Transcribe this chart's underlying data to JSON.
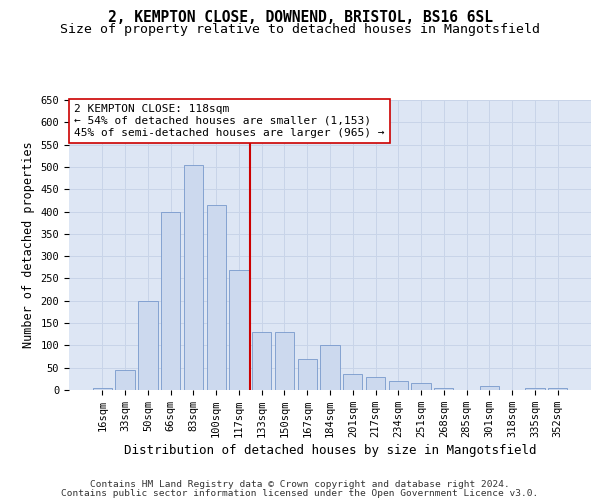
{
  "title_line1": "2, KEMPTON CLOSE, DOWNEND, BRISTOL, BS16 6SL",
  "title_line2": "Size of property relative to detached houses in Mangotsfield",
  "xlabel": "Distribution of detached houses by size in Mangotsfield",
  "ylabel": "Number of detached properties",
  "categories": [
    "16sqm",
    "33sqm",
    "50sqm",
    "66sqm",
    "83sqm",
    "100sqm",
    "117sqm",
    "133sqm",
    "150sqm",
    "167sqm",
    "184sqm",
    "201sqm",
    "217sqm",
    "234sqm",
    "251sqm",
    "268sqm",
    "285sqm",
    "301sqm",
    "318sqm",
    "335sqm",
    "352sqm"
  ],
  "values": [
    5,
    45,
    200,
    400,
    505,
    415,
    270,
    130,
    130,
    70,
    100,
    35,
    30,
    20,
    15,
    5,
    0,
    10,
    0,
    5,
    5
  ],
  "bar_color": "#ccd9ee",
  "bar_edge_color": "#7799cc",
  "vline_x_index": 6,
  "vline_color": "#cc0000",
  "annotation_text": "2 KEMPTON CLOSE: 118sqm\n← 54% of detached houses are smaller (1,153)\n45% of semi-detached houses are larger (965) →",
  "annotation_box_color": "#ffffff",
  "annotation_box_edge": "#cc0000",
  "ylim": [
    0,
    650
  ],
  "yticks": [
    0,
    50,
    100,
    150,
    200,
    250,
    300,
    350,
    400,
    450,
    500,
    550,
    600,
    650
  ],
  "grid_color": "#c8d4e8",
  "bg_color": "#dde6f4",
  "footer_line1": "Contains HM Land Registry data © Crown copyright and database right 2024.",
  "footer_line2": "Contains public sector information licensed under the Open Government Licence v3.0.",
  "title_fontsize": 10.5,
  "subtitle_fontsize": 9.5,
  "axis_label_fontsize": 8.5,
  "tick_fontsize": 7.5,
  "footer_fontsize": 6.8,
  "fig_width": 6.0,
  "fig_height": 5.0,
  "fig_dpi": 100
}
